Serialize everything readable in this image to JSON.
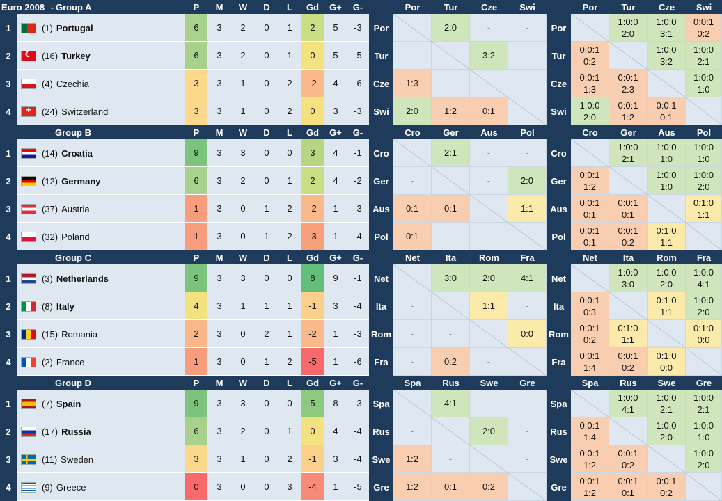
{
  "title": "Euro 2008",
  "columns": [
    "P",
    "M",
    "W",
    "D",
    "L",
    "Gd",
    "G+",
    "G-"
  ],
  "colors": {
    "navy": "#1f3b5c",
    "row_bg": "#dfe8f1",
    "win": "#cfe6bd",
    "draw": "#fbeaa9",
    "loss": "#f8cdb0"
  },
  "groups": [
    {
      "name": "Group A",
      "abbr": [
        "Por",
        "Tur",
        "Cze",
        "Swi"
      ],
      "teams": [
        {
          "rank": "1",
          "seed": "(1)",
          "name": "Portugal",
          "bold": true,
          "flag": "portugal",
          "P": "6",
          "M": "3",
          "W": "2",
          "D": "0",
          "L": "1",
          "Gd": "2",
          "Gp": "5",
          "Gm": "-3",
          "pc": "#a9d18e",
          "gc": "#c9dd84"
        },
        {
          "rank": "2",
          "seed": "(16)",
          "name": "Turkey",
          "bold": true,
          "flag": "turkey",
          "P": "6",
          "M": "3",
          "W": "2",
          "D": "0",
          "L": "1",
          "Gd": "0",
          "Gp": "5",
          "Gm": "-5",
          "pc": "#a9d18e",
          "gc": "#f3e27f"
        },
        {
          "rank": "3",
          "seed": "(4)",
          "name": "Czechia",
          "bold": false,
          "flag": "czechia",
          "P": "3",
          "M": "3",
          "W": "1",
          "D": "0",
          "L": "2",
          "Gd": "-2",
          "Gp": "4",
          "Gm": "-6",
          "pc": "#fcd98a",
          "gc": "#f9b98a"
        },
        {
          "rank": "4",
          "seed": "(24)",
          "name": "Switzerland",
          "bold": false,
          "flag": "switzerland",
          "P": "3",
          "M": "3",
          "W": "1",
          "D": "0",
          "L": "2",
          "Gd": "0",
          "Gp": "3",
          "Gm": "-3",
          "pc": "#fcd98a",
          "gc": "#f3e27f"
        }
      ],
      "results": [
        [
          [
            "x",
            ""
          ],
          [
            "w",
            "2:0"
          ],
          [
            "d",
            "-"
          ],
          [
            "d",
            "-"
          ]
        ],
        [
          [
            "d",
            "-"
          ],
          [
            "x",
            ""
          ],
          [
            "w",
            "3:2"
          ],
          [
            "d",
            "-"
          ]
        ],
        [
          [
            "l",
            "1:3"
          ],
          [
            "d",
            "-"
          ],
          [
            "x",
            ""
          ],
          [
            "d",
            "-"
          ]
        ],
        [
          [
            "w",
            "2:0"
          ],
          [
            "l",
            "1:2"
          ],
          [
            "l",
            "0:1"
          ],
          [
            "x",
            ""
          ]
        ]
      ],
      "matrix": [
        [
          [
            "x",
            "",
            ""
          ],
          [
            "w",
            "1:0:0",
            "2:0"
          ],
          [
            "w",
            "1:0:0",
            "3:1"
          ],
          [
            "l",
            "0:0:1",
            "0:2"
          ]
        ],
        [
          [
            "l",
            "0:0:1",
            "0:2"
          ],
          [
            "x",
            "",
            ""
          ],
          [
            "w",
            "1:0:0",
            "3:2"
          ],
          [
            "w",
            "1:0:0",
            "2:1"
          ]
        ],
        [
          [
            "l",
            "0:0:1",
            "1:3"
          ],
          [
            "l",
            "0:0:1",
            "2:3"
          ],
          [
            "x",
            "",
            ""
          ],
          [
            "w",
            "1:0:0",
            "1:0"
          ]
        ],
        [
          [
            "w",
            "1:0:0",
            "2:0"
          ],
          [
            "l",
            "0:0:1",
            "1:2"
          ],
          [
            "l",
            "0:0:1",
            "0:1"
          ],
          [
            "x",
            "",
            ""
          ]
        ]
      ]
    },
    {
      "name": "Group B",
      "abbr": [
        "Cro",
        "Ger",
        "Aus",
        "Pol"
      ],
      "teams": [
        {
          "rank": "1",
          "seed": "(14)",
          "name": "Croatia",
          "bold": true,
          "flag": "croatia",
          "P": "9",
          "M": "3",
          "W": "3",
          "D": "0",
          "L": "0",
          "Gd": "3",
          "Gp": "4",
          "Gm": "-1",
          "pc": "#7cc47d",
          "gc": "#b7d67f"
        },
        {
          "rank": "2",
          "seed": "(12)",
          "name": "Germany",
          "bold": true,
          "flag": "germany",
          "P": "6",
          "M": "3",
          "W": "2",
          "D": "0",
          "L": "1",
          "Gd": "2",
          "Gp": "4",
          "Gm": "-2",
          "pc": "#a9d18e",
          "gc": "#c9dd84"
        },
        {
          "rank": "3",
          "seed": "(37)",
          "name": "Austria",
          "bold": false,
          "flag": "austria",
          "P": "1",
          "M": "3",
          "W": "0",
          "D": "1",
          "L": "2",
          "Gd": "-2",
          "Gp": "1",
          "Gm": "-3",
          "pc": "#f89c7e",
          "gc": "#f9b98a"
        },
        {
          "rank": "4",
          "seed": "(32)",
          "name": "Poland",
          "bold": false,
          "flag": "poland",
          "P": "1",
          "M": "3",
          "W": "0",
          "D": "1",
          "L": "2",
          "Gd": "-3",
          "Gp": "1",
          "Gm": "-4",
          "pc": "#f89c7e",
          "gc": "#f8a07a"
        }
      ],
      "results": [
        [
          [
            "x",
            ""
          ],
          [
            "w",
            "2:1"
          ],
          [
            "d",
            "-"
          ],
          [
            "d",
            "-"
          ]
        ],
        [
          [
            "d",
            "-"
          ],
          [
            "x",
            ""
          ],
          [
            "d",
            "-"
          ],
          [
            "w",
            "2:0"
          ]
        ],
        [
          [
            "l",
            "0:1"
          ],
          [
            "l",
            "0:1"
          ],
          [
            "x",
            ""
          ],
          [
            "d",
            "1:1"
          ]
        ],
        [
          [
            "l",
            "0:1"
          ],
          [
            "d",
            "-"
          ],
          [
            "d",
            "-"
          ],
          [
            "x",
            ""
          ]
        ]
      ],
      "matrix": [
        [
          [
            "x",
            "",
            ""
          ],
          [
            "w",
            "1:0:0",
            "2:1"
          ],
          [
            "w",
            "1:0:0",
            "1:0"
          ],
          [
            "w",
            "1:0:0",
            "1:0"
          ]
        ],
        [
          [
            "l",
            "0:0:1",
            "1:2"
          ],
          [
            "x",
            "",
            ""
          ],
          [
            "w",
            "1:0:0",
            "1:0"
          ],
          [
            "w",
            "1:0:0",
            "2:0"
          ]
        ],
        [
          [
            "l",
            "0:0:1",
            "0:1"
          ],
          [
            "l",
            "0:0:1",
            "0:1"
          ],
          [
            "x",
            "",
            ""
          ],
          [
            "d",
            "0:1:0",
            "1:1"
          ]
        ],
        [
          [
            "l",
            "0:0:1",
            "0:1"
          ],
          [
            "l",
            "0:0:1",
            "0:2"
          ],
          [
            "d",
            "0:1:0",
            "1:1"
          ],
          [
            "x",
            "",
            ""
          ]
        ]
      ]
    },
    {
      "name": "Group C",
      "abbr": [
        "Net",
        "Ita",
        "Rom",
        "Fra"
      ],
      "teams": [
        {
          "rank": "1",
          "seed": "(3)",
          "name": "Netherlands",
          "bold": true,
          "flag": "netherlands",
          "P": "9",
          "M": "3",
          "W": "3",
          "D": "0",
          "L": "0",
          "Gd": "8",
          "Gp": "9",
          "Gm": "-1",
          "pc": "#7cc47d",
          "gc": "#63be7b"
        },
        {
          "rank": "2",
          "seed": "(8)",
          "name": "Italy",
          "bold": true,
          "flag": "italy",
          "P": "4",
          "M": "3",
          "W": "1",
          "D": "1",
          "L": "1",
          "Gd": "-1",
          "Gp": "3",
          "Gm": "-4",
          "pc": "#f3e27f",
          "gc": "#fcd08a"
        },
        {
          "rank": "3",
          "seed": "(15)",
          "name": "Romania",
          "bold": false,
          "flag": "romania",
          "P": "2",
          "M": "3",
          "W": "0",
          "D": "2",
          "L": "1",
          "Gd": "-2",
          "Gp": "1",
          "Gm": "-3",
          "pc": "#fbb78a",
          "gc": "#f9b98a"
        },
        {
          "rank": "4",
          "seed": "(2)",
          "name": "France",
          "bold": false,
          "flag": "france",
          "P": "1",
          "M": "3",
          "W": "0",
          "D": "1",
          "L": "2",
          "Gd": "-5",
          "Gp": "1",
          "Gm": "-6",
          "pc": "#f89c7e",
          "gc": "#f8696b"
        }
      ],
      "results": [
        [
          [
            "x",
            ""
          ],
          [
            "w",
            "3:0"
          ],
          [
            "w",
            "2:0"
          ],
          [
            "w",
            "4:1"
          ]
        ],
        [
          [
            "d",
            "-"
          ],
          [
            "x",
            ""
          ],
          [
            "d",
            "1:1"
          ],
          [
            "d",
            "-"
          ]
        ],
        [
          [
            "d",
            "-"
          ],
          [
            "d",
            "-"
          ],
          [
            "x",
            ""
          ],
          [
            "d",
            "0:0"
          ]
        ],
        [
          [
            "d",
            "-"
          ],
          [
            "l",
            "0:2"
          ],
          [
            "d",
            "-"
          ],
          [
            "x",
            ""
          ]
        ]
      ],
      "matrix": [
        [
          [
            "x",
            "",
            ""
          ],
          [
            "w",
            "1:0:0",
            "3:0"
          ],
          [
            "w",
            "1:0:0",
            "2:0"
          ],
          [
            "w",
            "1:0:0",
            "4:1"
          ]
        ],
        [
          [
            "l",
            "0:0:1",
            "0:3"
          ],
          [
            "x",
            "",
            ""
          ],
          [
            "d",
            "0:1:0",
            "1:1"
          ],
          [
            "w",
            "1:0:0",
            "2:0"
          ]
        ],
        [
          [
            "l",
            "0:0:1",
            "0:2"
          ],
          [
            "d",
            "0:1:0",
            "1:1"
          ],
          [
            "x",
            "",
            ""
          ],
          [
            "d",
            "0:1:0",
            "0:0"
          ]
        ],
        [
          [
            "l",
            "0:0:1",
            "1:4"
          ],
          [
            "l",
            "0:0:1",
            "0:2"
          ],
          [
            "d",
            "0:1:0",
            "0:0"
          ],
          [
            "x",
            "",
            ""
          ]
        ]
      ]
    },
    {
      "name": "Group D",
      "abbr": [
        "Spa",
        "Rus",
        "Swe",
        "Gre"
      ],
      "teams": [
        {
          "rank": "1",
          "seed": "(7)",
          "name": "Spain",
          "bold": true,
          "flag": "spain",
          "P": "9",
          "M": "3",
          "W": "3",
          "D": "0",
          "L": "0",
          "Gd": "5",
          "Gp": "8",
          "Gm": "-3",
          "pc": "#7cc47d",
          "gc": "#8cc97e"
        },
        {
          "rank": "2",
          "seed": "(17)",
          "name": "Russia",
          "bold": true,
          "flag": "russia",
          "P": "6",
          "M": "3",
          "W": "2",
          "D": "0",
          "L": "1",
          "Gd": "0",
          "Gp": "4",
          "Gm": "-4",
          "pc": "#a9d18e",
          "gc": "#f3e27f"
        },
        {
          "rank": "3",
          "seed": "(11)",
          "name": "Sweden",
          "bold": false,
          "flag": "sweden",
          "P": "3",
          "M": "3",
          "W": "1",
          "D": "0",
          "L": "2",
          "Gd": "-1",
          "Gp": "3",
          "Gm": "-4",
          "pc": "#fcd98a",
          "gc": "#fcd08a"
        },
        {
          "rank": "4",
          "seed": "(9)",
          "name": "Greece",
          "bold": false,
          "flag": "greece",
          "P": "0",
          "M": "3",
          "W": "0",
          "D": "0",
          "L": "3",
          "Gd": "-4",
          "Gp": "1",
          "Gm": "-5",
          "pc": "#f8696b",
          "gc": "#f88a78"
        }
      ],
      "results": [
        [
          [
            "x",
            ""
          ],
          [
            "w",
            "4:1"
          ],
          [
            "d",
            "-"
          ],
          [
            "d",
            "-"
          ]
        ],
        [
          [
            "d",
            "-"
          ],
          [
            "x",
            ""
          ],
          [
            "w",
            "2:0"
          ],
          [
            "d",
            "-"
          ]
        ],
        [
          [
            "l",
            "1:2"
          ],
          [
            "d",
            "-"
          ],
          [
            "x",
            ""
          ],
          [
            "d",
            "-"
          ]
        ],
        [
          [
            "l",
            "1:2"
          ],
          [
            "l",
            "0:1"
          ],
          [
            "l",
            "0:2"
          ],
          [
            "x",
            ""
          ]
        ]
      ],
      "matrix": [
        [
          [
            "x",
            "",
            ""
          ],
          [
            "w",
            "1:0:0",
            "4:1"
          ],
          [
            "w",
            "1:0:0",
            "2:1"
          ],
          [
            "w",
            "1:0:0",
            "2:1"
          ]
        ],
        [
          [
            "l",
            "0:0:1",
            "1:4"
          ],
          [
            "x",
            "",
            ""
          ],
          [
            "w",
            "1:0:0",
            "2:0"
          ],
          [
            "w",
            "1:0:0",
            "1:0"
          ]
        ],
        [
          [
            "l",
            "0:0:1",
            "1:2"
          ],
          [
            "l",
            "0:0:1",
            "0:2"
          ],
          [
            "x",
            "",
            ""
          ],
          [
            "w",
            "1:0:0",
            "2:0"
          ]
        ],
        [
          [
            "l",
            "0:0:1",
            "1:2"
          ],
          [
            "l",
            "0:0:1",
            "0:1"
          ],
          [
            "l",
            "0:0:1",
            "0:2"
          ],
          [
            "x",
            "",
            ""
          ]
        ]
      ]
    }
  ]
}
